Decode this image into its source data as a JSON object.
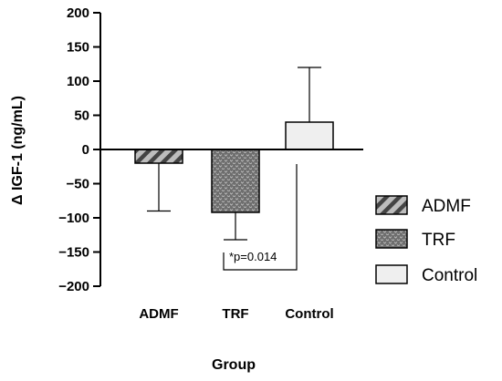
{
  "chart_data": {
    "type": "bar",
    "categories": [
      "ADMF",
      "TRF",
      "Control"
    ],
    "values": [
      -20,
      -92,
      40
    ],
    "error_upper": [
      null,
      null,
      120
    ],
    "error_lower": [
      -90,
      -132,
      null
    ],
    "ylabel": "Δ IGF-1 (ng/mL)",
    "xlabel": "Group",
    "ylim": [
      -200,
      200
    ],
    "yticks": [
      200,
      150,
      100,
      50,
      0,
      -50,
      -100,
      -150,
      -200
    ],
    "ytick_labels": [
      "200",
      "150",
      "100",
      "50",
      "0",
      "−50",
      "−100",
      "−150",
      "−200"
    ],
    "legend": {
      "placement": "right",
      "entries": [
        {
          "label": "ADMF",
          "fill": "diagonal-hatch",
          "color": "#555555"
        },
        {
          "label": "TRF",
          "fill": "dotted-dark",
          "color": "#5a5a5a"
        },
        {
          "label": "Control",
          "fill": "solid",
          "color": "#efefef"
        }
      ]
    },
    "annotation": {
      "text": "*p=0.014",
      "between": [
        "TRF",
        "Control"
      ]
    }
  }
}
